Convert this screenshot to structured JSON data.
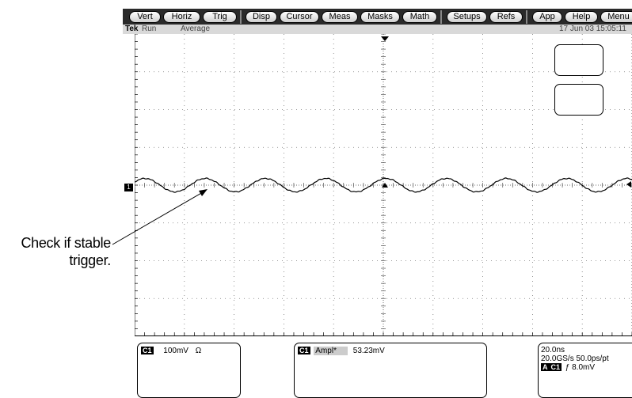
{
  "menu": {
    "buttons": [
      "Vert",
      "Horiz",
      "Trig",
      "Disp",
      "Cursor",
      "Meas",
      "Masks",
      "Math",
      "Setups",
      "Refs",
      "App",
      "Help",
      "Menu"
    ]
  },
  "status": {
    "brand": "Tek",
    "run_state": "Run",
    "acquisition_mode": "Average",
    "datetime": "17 Jun 03 15:05:11"
  },
  "waveform": {
    "channel_marker": "1",
    "cycles_shown": 8.25
  },
  "callout": {
    "line1": "Check if stable",
    "line2": "trigger."
  },
  "channel_panel": {
    "channel": "C1",
    "scale": "100mV",
    "coupling_symbol": "Ω"
  },
  "measurement_panel": {
    "channel": "C1",
    "label": "Ampl*",
    "value": "53.23mV"
  },
  "timebase_panel": {
    "horizontal_scale": "20.0ns",
    "sample_rate": "20.0GS/s 50.0ps/pt",
    "trigger_source_a": "A",
    "trigger_source_ch": "C1",
    "trigger_slope_symbol": "ƒ",
    "trigger_level": "8.0mV"
  },
  "colors": {
    "menubar": "#2a2a2a",
    "statusbar": "#d9d9d9",
    "trace": "#000000"
  }
}
